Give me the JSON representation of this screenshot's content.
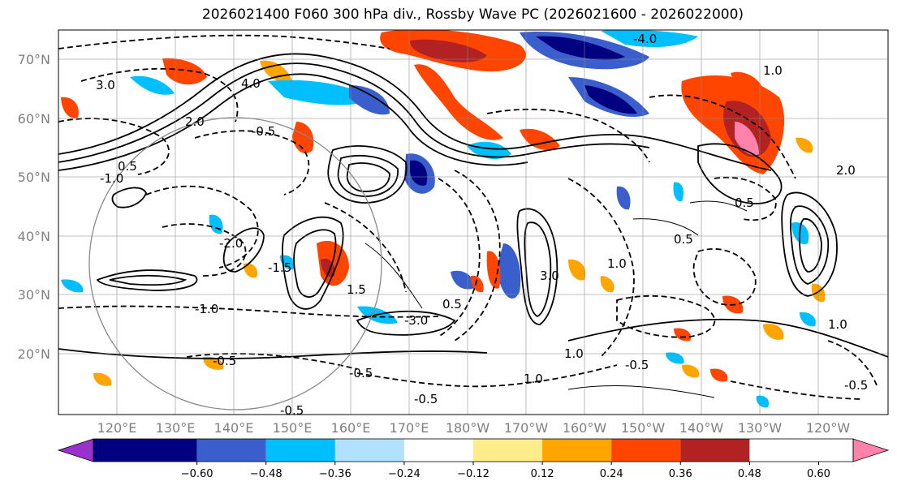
{
  "title": "2026021400 F060 300 hPa div., Rossby Wave PC (2026021600 - 2026022000)",
  "lat_labels": [
    "70°N",
    "60°N",
    "50°N",
    "40°N",
    "30°N",
    "20°N"
  ],
  "lon_labels": [
    "120°E",
    "130°E",
    "140°E",
    "150°E",
    "160°E",
    "170°E",
    "180°W",
    "170°W",
    "160°W",
    "150°W",
    "140°W",
    "130°W",
    "120°W"
  ],
  "colorbar": {
    "colors": [
      "#9932cc",
      "#000080",
      "#3a5fcd",
      "#00bfff",
      "#b0e2ff",
      "#ffffff",
      "#ffec8b",
      "#ffa500",
      "#ff4500",
      "#b22222",
      "#ff82ab"
    ],
    "labels": [
      "−0.60",
      "−0.48",
      "−0.36",
      "−0.24",
      "−0.12",
      "0.12",
      "0.24",
      "0.36",
      "0.48",
      "0.60"
    ]
  },
  "contour_labels": [
    "-4.0",
    "4.0",
    "3.0",
    "2.0",
    "1.0",
    "-1.0",
    "0.5",
    "-0.5",
    "1.5",
    "-1.5",
    "-2.0",
    "3.0",
    "-3.0",
    "1.0",
    "-0.5",
    "0.5",
    "-1.0",
    "-0.5",
    "-0.5",
    "1.0",
    "0.5",
    "-0.5",
    "1.0",
    "-0.5",
    "2.0",
    "0.5",
    "-0.5",
    "1.0"
  ]
}
